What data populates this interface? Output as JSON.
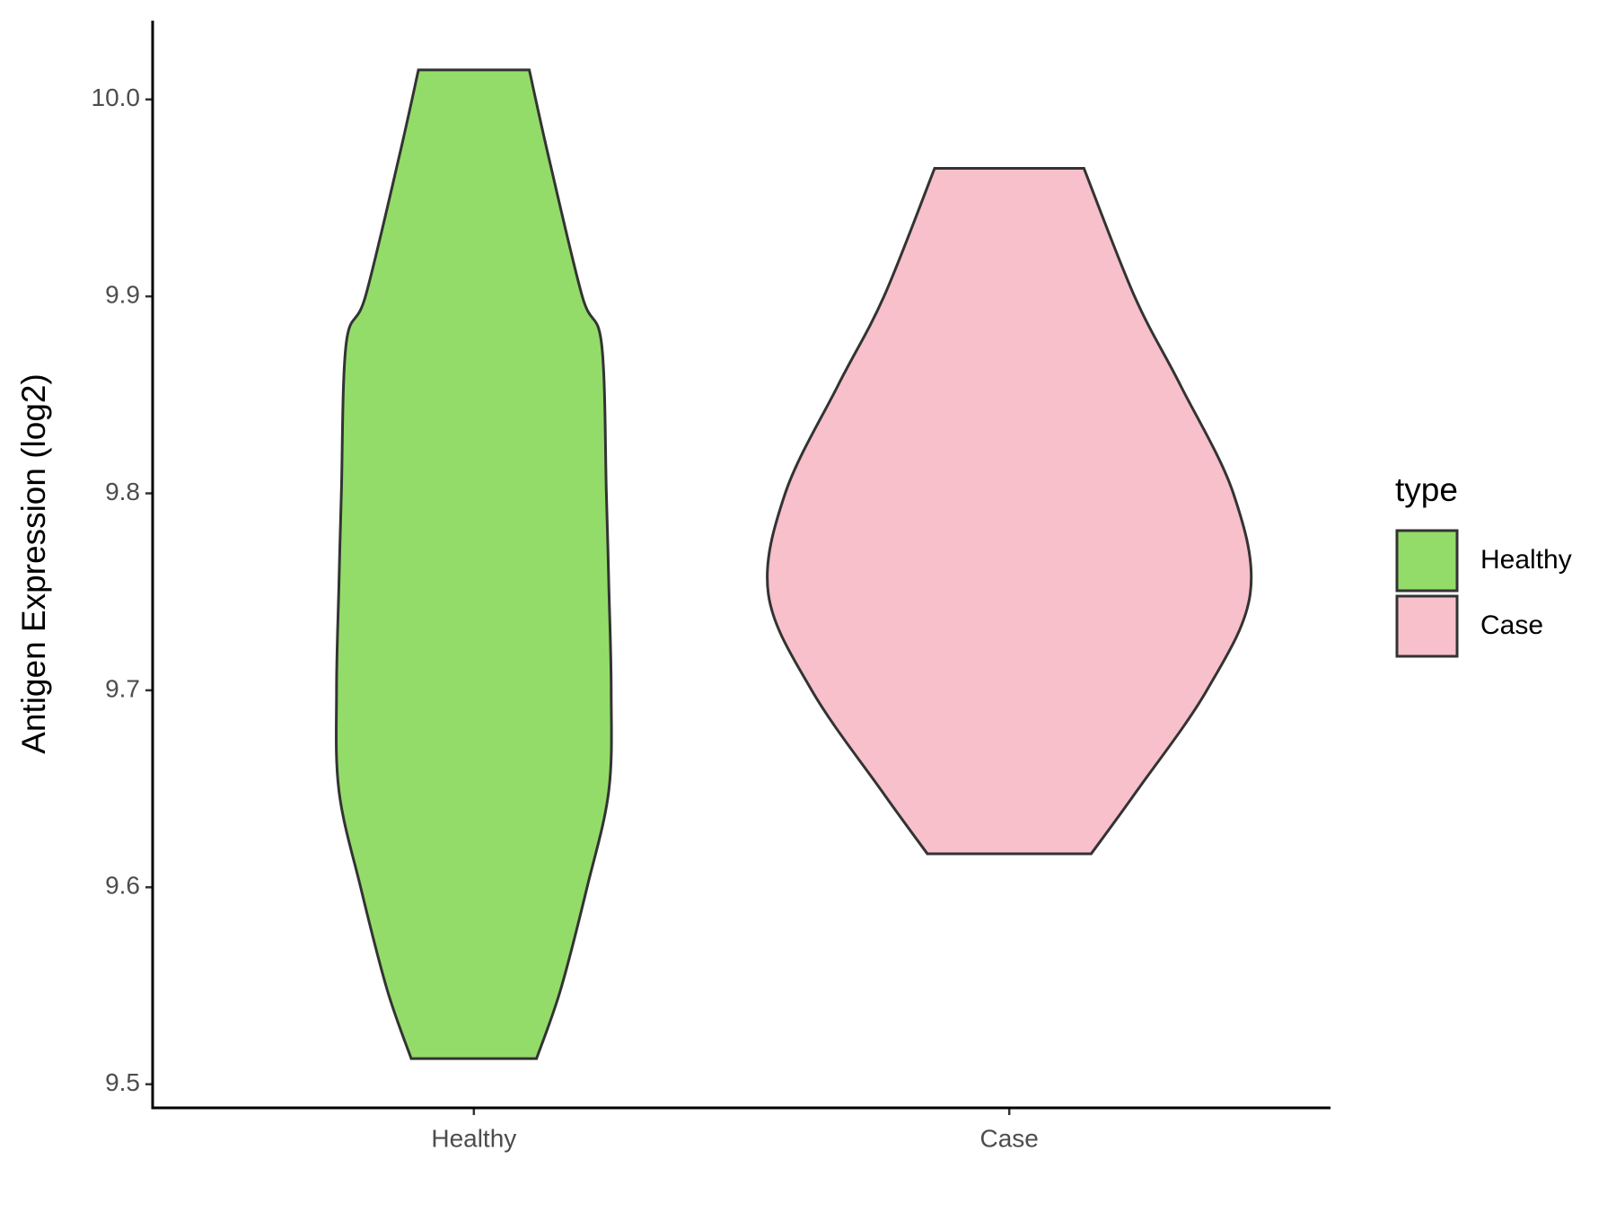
{
  "chart_data": {
    "type": "violin",
    "ylabel": "Antigen Expression (log2)",
    "categories": [
      "Healthy",
      "Case"
    ],
    "legend_title": "type",
    "legend": "right",
    "ylim": [
      9.488,
      10.04
    ],
    "yticks": [
      9.5,
      9.6,
      9.7,
      9.8,
      9.9,
      {
        "value": 10,
        "label": "10.0"
      }
    ],
    "series": [
      {
        "name": "Healthy",
        "color": "#93dc6a",
        "values": [
          10.015,
          9.971,
          9.9,
          9.876,
          9.8,
          9.754,
          9.7,
          9.649,
          9.6,
          9.548,
          9.513
        ],
        "density": [
          0.23,
          0.31,
          0.45,
          0.53,
          0.55,
          0.56,
          0.57,
          0.56,
          0.47,
          0.36,
          0.26
        ]
      },
      {
        "name": "Case",
        "color": "#f7c0cb",
        "values": [
          9.965,
          9.9,
          9.855,
          9.8,
          9.749,
          9.7,
          9.649,
          9.617
        ],
        "density": [
          0.31,
          0.52,
          0.71,
          0.93,
          1.0,
          0.82,
          0.53,
          0.34
        ]
      }
    ]
  }
}
